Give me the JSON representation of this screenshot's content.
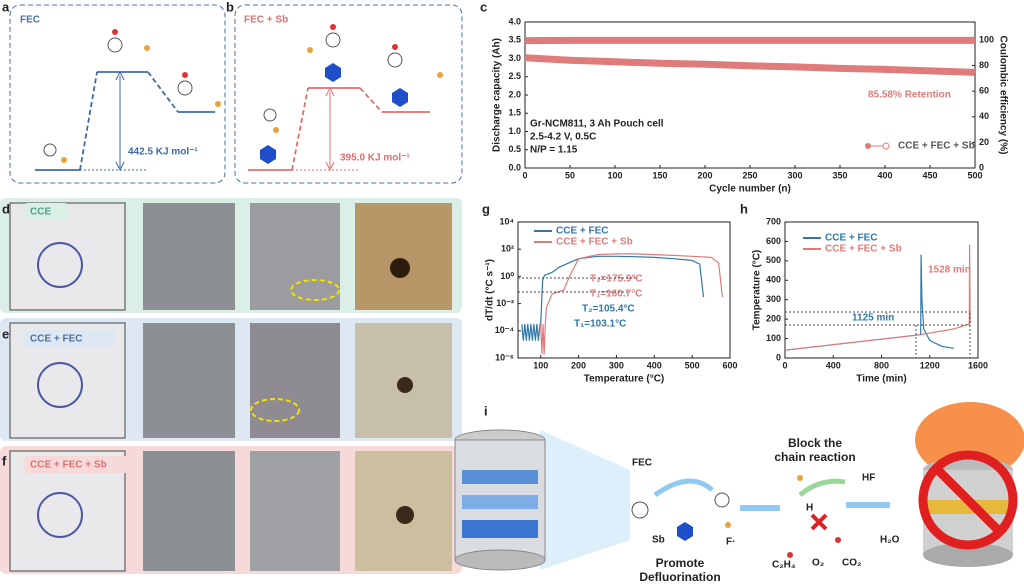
{
  "panel_labels": [
    "a",
    "b",
    "c",
    "d",
    "e",
    "f",
    "g",
    "h",
    "i"
  ],
  "panel_a": {
    "title": "FEC",
    "barrier": "442.5 KJ mol⁻¹"
  },
  "panel_b": {
    "title": "FEC + Sb",
    "barrier": "395.0 KJ mol⁻¹"
  },
  "photo_rows": [
    "CCE",
    "CCE + FEC",
    "CCE + FEC + Sb"
  ],
  "panel_i": {
    "fec": "FEC",
    "sb": "Sb",
    "f_radical": "F·",
    "promote": "Promote",
    "defluorination": "Defluorination",
    "block1": "Block the",
    "block2": "chain reaction",
    "hf": "HF",
    "h": "H",
    "h2o": "H₂O",
    "c2h4": "C₂H₄",
    "o2": "O₂",
    "co2": "CO₂"
  },
  "chart_data": [
    {
      "type": "line",
      "xlabel": "Cycle number (n)",
      "ylabel": "Discharge capacity (Ah)",
      "y2label": "Coulombic efficiency (%)",
      "xlim": [
        0,
        500
      ],
      "xticks": [
        0,
        50,
        100,
        150,
        200,
        250,
        300,
        350,
        400,
        450,
        500
      ],
      "ylim": [
        0,
        4
      ],
      "yticks": [
        {
          "value": 0,
          "label": "0.0"
        },
        0.5,
        {
          "value": 1,
          "label": "1.0"
        },
        1.5,
        {
          "value": 2,
          "label": "2.0"
        },
        2.5,
        {
          "value": 3,
          "label": "3.0"
        },
        3.5,
        {
          "value": 4,
          "label": "4.0"
        }
      ],
      "y2lim": [
        0,
        114
      ],
      "y2ticks": [
        0,
        20,
        40,
        60,
        80,
        100
      ],
      "x": [
        0,
        50,
        100,
        150,
        200,
        250,
        300,
        350,
        400,
        450,
        500
      ],
      "series": [
        {
          "name": "CCE + FEC + Sb",
          "color": "#e07b7b",
          "values": [
            3.02,
            2.95,
            2.91,
            2.87,
            2.84,
            2.8,
            2.77,
            2.73,
            2.7,
            2.66,
            2.62
          ]
        },
        {
          "color": "#e07b7b",
          "axis": "y2",
          "values": [
            99.5,
            99.6,
            99.6,
            99.6,
            99.6,
            99.6,
            99.6,
            99.6,
            99.6,
            99.6,
            99.6
          ]
        }
      ],
      "annotations": [
        "Gr-NCM811, 3 Ah Pouch cell",
        "2.5-4.2 V, 0.5C",
        "N/P = 1.15",
        "85.58% Retention"
      ]
    },
    {
      "type": "line",
      "log_y": true,
      "xlabel": "Temperature (°C)",
      "ylabel": "dT/dt (°C s⁻¹)",
      "xlim": [
        40,
        600
      ],
      "xticks": [
        100,
        200,
        300,
        400,
        500,
        600
      ],
      "ylim": [
        1e-06,
        10000
      ],
      "yticks": [
        {
          "value": 1e-06,
          "label": "10⁻⁶"
        },
        {
          "value": 0.0001,
          "label": "10⁻⁴"
        },
        {
          "value": 0.01,
          "label": "10⁻²"
        },
        {
          "value": 1,
          "label": "10⁰"
        },
        {
          "value": 100,
          "label": "10²"
        },
        {
          "value": 10000,
          "label": "10⁴"
        }
      ],
      "series": [
        {
          "name": "CCE + FEC",
          "color": "#2f78a8",
          "x": [
            50,
            54,
            58,
            62,
            66,
            70,
            74,
            78,
            82,
            86,
            90,
            94,
            98,
            100,
            105,
            110,
            130,
            150,
            175,
            200,
            250,
            300,
            350,
            400,
            450,
            500,
            520,
            530
          ],
          "values": [
            0.0003,
            2e-05,
            0.0003,
            2e-05,
            0.0003,
            2e-05,
            0.0003,
            2e-05,
            0.0003,
            2e-05,
            0.0003,
            2e-05,
            0.0003,
            0.0003,
            0.5,
            1.2,
            2,
            5,
            10,
            20,
            30,
            30,
            28,
            25,
            20,
            15,
            8,
            0.03
          ]
        },
        {
          "name": "CCE + FEC + Sb",
          "color": "#e07b7b",
          "x": [
            100,
            103,
            106,
            109,
            112,
            115,
            130,
            161,
            176,
            200,
            250,
            300,
            350,
            400,
            450,
            500,
            550,
            570,
            580
          ],
          "values": [
            0.0003,
            2e-06,
            0.0003,
            2e-06,
            0.0003,
            0.005,
            0.05,
            0.1,
            1,
            20,
            40,
            45,
            45,
            40,
            35,
            30,
            25,
            10,
            0.03
          ]
        }
      ],
      "annotations": [
        "T₂=175.9°C",
        "T₁=160.7°C",
        "T₂=105.4°C",
        "T₁=103.1°C"
      ]
    },
    {
      "type": "line",
      "xlabel": "Time (min)",
      "ylabel": "Temperature (°C)",
      "xlim": [
        0,
        1600
      ],
      "xticks": [
        0,
        400,
        800,
        1200,
        1600
      ],
      "ylim": [
        0,
        700
      ],
      "yticks": [
        0,
        100,
        200,
        300,
        400,
        500,
        600,
        700
      ],
      "series": [
        {
          "name": "CCE + FEC",
          "color": "#2f78a8",
          "x": [
            0,
            1125,
            1128,
            1135,
            1150,
            1200,
            1300,
            1400
          ],
          "values": [
            40,
            120,
            530,
            300,
            150,
            90,
            60,
            50
          ]
        },
        {
          "name": "CCE + FEC + Sb",
          "color": "#e07b7b",
          "x": [
            0,
            1125,
            1400,
            1528,
            1530,
            1535
          ],
          "values": [
            40,
            120,
            150,
            175,
            580,
            180
          ]
        }
      ],
      "annotations": [
        "1125 min",
        "1528 min"
      ]
    }
  ]
}
